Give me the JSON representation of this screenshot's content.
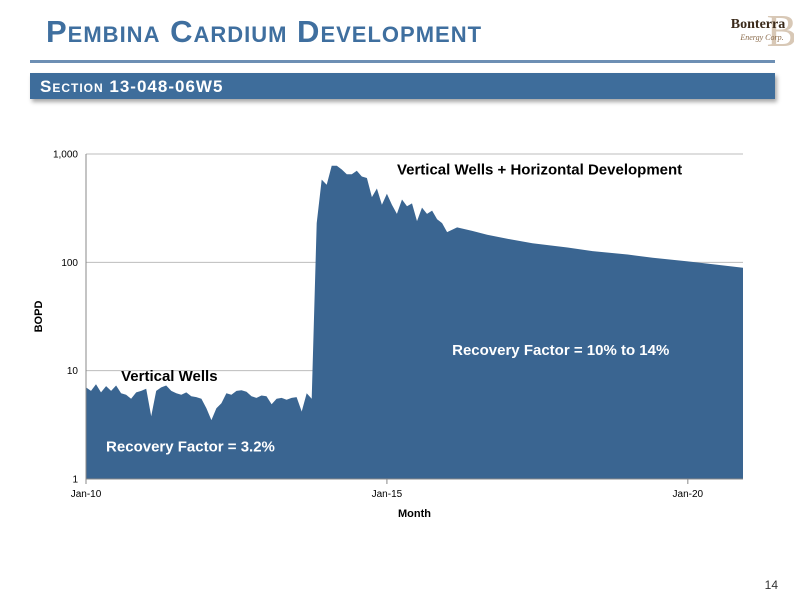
{
  "slide": {
    "title": "Pembina Cardium Development",
    "section": "Section 13-048-06W5",
    "page_number": "14",
    "logo_text": [
      "Bonterra",
      "Energy Corp."
    ]
  },
  "colors": {
    "series_fill": "#3a6591",
    "title": "#3f6f9f",
    "section_bar": "#3e6d9b",
    "logo": "#8a6a4a"
  },
  "chart_data": {
    "type": "area",
    "title": "",
    "xlabel": "Month",
    "ylabel": "BOPD",
    "y_scale": "log",
    "ylim": [
      1,
      1000
    ],
    "y_ticks": [
      {
        "value": 1,
        "label": "1"
      },
      {
        "value": 10,
        "label": "10"
      },
      {
        "value": 100,
        "label": "100"
      },
      {
        "value": 1000,
        "label": "1,000"
      }
    ],
    "xlim": [
      "2010-01",
      "2020-12"
    ],
    "x_ticks": [
      {
        "value": "2010-01",
        "label": "Jan-10"
      },
      {
        "value": "2015-01",
        "label": "Jan-15"
      },
      {
        "value": "2020-01",
        "label": "Jan-20"
      }
    ],
    "grid": "horizontal",
    "annotations": [
      {
        "text": "Vertical Wells + Horizontal Development",
        "x": "2015-03",
        "y": 650
      },
      {
        "text": "Vertical Wells",
        "x": "2010-08",
        "y": 8
      },
      {
        "text": "Recovery Factor = 10% to 14%",
        "x": "2016-02",
        "y": 14
      },
      {
        "text": "Recovery Factor = 3.2%",
        "x": "2010-05",
        "y": 1.8
      }
    ],
    "series": [
      {
        "x": [
          "2010-01",
          "2010-02",
          "2010-03",
          "2010-04",
          "2010-05",
          "2010-06",
          "2010-07",
          "2010-08",
          "2010-09",
          "2010-10",
          "2010-11",
          "2010-12",
          "2011-01",
          "2011-02",
          "2011-03",
          "2011-04",
          "2011-05",
          "2011-06",
          "2011-07",
          "2011-08",
          "2011-09",
          "2011-10",
          "2011-11",
          "2011-12",
          "2012-01",
          "2012-02",
          "2012-03",
          "2012-04",
          "2012-05",
          "2012-06",
          "2012-07",
          "2012-08",
          "2012-09",
          "2012-10",
          "2012-11",
          "2012-12",
          "2013-01",
          "2013-02",
          "2013-03",
          "2013-04",
          "2013-05",
          "2013-06",
          "2013-07",
          "2013-08",
          "2013-09",
          "2013-10",
          "2013-11",
          "2013-12",
          "2014-01",
          "2014-02",
          "2014-03",
          "2014-04",
          "2014-05",
          "2014-06",
          "2014-07",
          "2014-08",
          "2014-09",
          "2014-10",
          "2014-11",
          "2014-12",
          "2015-01",
          "2015-02",
          "2015-03",
          "2015-04",
          "2015-05",
          "2015-06",
          "2015-07",
          "2015-08",
          "2015-09",
          "2015-10",
          "2015-11",
          "2015-12",
          "2016-01",
          "2016-03",
          "2016-06",
          "2016-09",
          "2017-01",
          "2017-06",
          "2018-01",
          "2018-06",
          "2019-01",
          "2019-06",
          "2020-01",
          "2020-06",
          "2020-12"
        ],
        "values": [
          7,
          6.5,
          7.5,
          6.3,
          7.2,
          6.5,
          7.3,
          6.2,
          6,
          5.5,
          6.3,
          6.5,
          6.8,
          3.8,
          6.5,
          7,
          7.3,
          6.5,
          6.2,
          6,
          6.3,
          5.8,
          5.7,
          5.5,
          4.5,
          3.5,
          4.5,
          5,
          6.2,
          6,
          6.5,
          6.6,
          6.4,
          5.8,
          5.6,
          5.9,
          5.8,
          4.9,
          5.5,
          5.6,
          5.4,
          5.6,
          5.7,
          4.2,
          6.2,
          5.5,
          230,
          580,
          520,
          780,
          780,
          720,
          650,
          650,
          700,
          620,
          600,
          400,
          480,
          340,
          430,
          340,
          280,
          380,
          330,
          350,
          240,
          320,
          280,
          300,
          250,
          230,
          190,
          210,
          195,
          180,
          165,
          150,
          137,
          127,
          118,
          110,
          102,
          96,
          89
        ]
      }
    ]
  }
}
